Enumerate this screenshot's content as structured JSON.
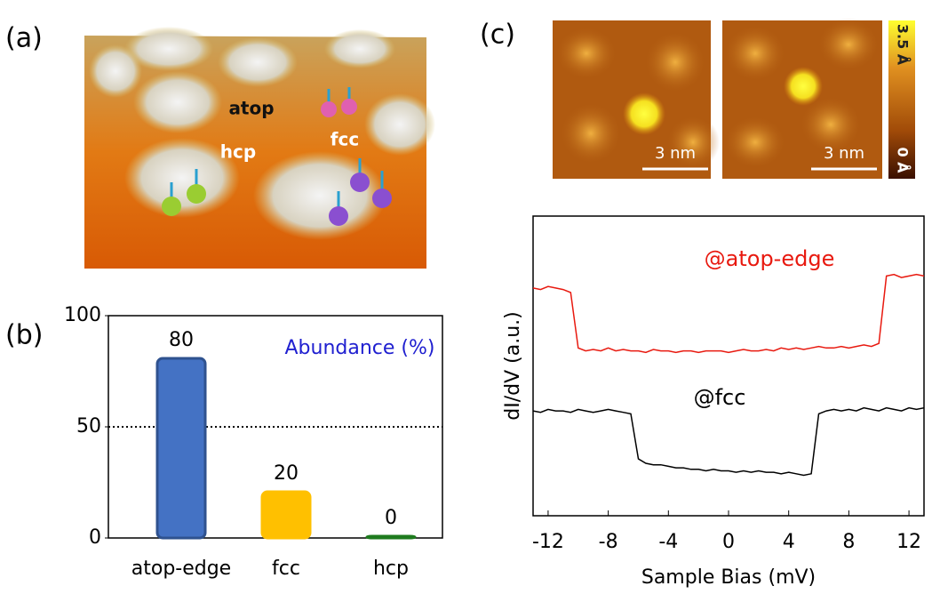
{
  "panels": {
    "a": {
      "label": "(a)",
      "sites": [
        "atop",
        "fcc",
        "hcp"
      ]
    },
    "b": {
      "label": "(b)"
    },
    "c": {
      "label": "(c)",
      "scale_bars": [
        "3 nm",
        "3 nm"
      ],
      "colorbar": [
        "3.5 Å",
        "0 Å"
      ]
    }
  },
  "chart_data": [
    {
      "type": "bar",
      "categories": [
        "atop-edge",
        "fcc",
        "hcp"
      ],
      "values": [
        80,
        20,
        0
      ],
      "colors": [
        "#4472c4",
        "#ffc000",
        "#1e7b1e"
      ],
      "ylim": [
        0,
        100
      ],
      "yticks": [
        0,
        50,
        100
      ],
      "hline": 50,
      "annotation": "Abundance (%)"
    },
    {
      "type": "line",
      "xlabel": "Sample Bias (mV)",
      "ylabel": "dI/dV (a.u.)",
      "xlim": [
        -13,
        13
      ],
      "xticks": [
        -12,
        -8,
        -4,
        0,
        4,
        8,
        12
      ],
      "ylim": [
        0,
        10
      ],
      "x": [
        -13,
        -12.5,
        -12,
        -11.5,
        -11,
        -10.5,
        -10,
        -9.5,
        -9,
        -8.5,
        -8,
        -7.5,
        -7,
        -6.5,
        -6,
        -5.5,
        -5,
        -4.5,
        -4,
        -3.5,
        -3,
        -2.5,
        -2,
        -1.5,
        -1,
        -0.5,
        0,
        0.5,
        1,
        1.5,
        2,
        2.5,
        3,
        3.5,
        4,
        4.5,
        5,
        5.5,
        6,
        6.5,
        7,
        7.5,
        8,
        8.5,
        9,
        9.5,
        10,
        10.5,
        11,
        11.5,
        12,
        12.5,
        13
      ],
      "series": [
        {
          "name": "@atop-edge",
          "color": "#e8190f",
          "values": [
            7.6,
            7.55,
            7.65,
            7.6,
            7.55,
            7.45,
            5.6,
            5.5,
            5.55,
            5.5,
            5.6,
            5.5,
            5.55,
            5.5,
            5.5,
            5.45,
            5.55,
            5.5,
            5.5,
            5.45,
            5.5,
            5.5,
            5.45,
            5.5,
            5.5,
            5.5,
            5.45,
            5.5,
            5.55,
            5.5,
            5.5,
            5.55,
            5.5,
            5.6,
            5.55,
            5.6,
            5.55,
            5.6,
            5.65,
            5.6,
            5.6,
            5.65,
            5.6,
            5.65,
            5.7,
            5.65,
            5.75,
            8.0,
            8.05,
            7.95,
            8.0,
            8.05,
            8.0
          ]
        },
        {
          "name": "@fcc",
          "color": "#000000",
          "values": [
            3.5,
            3.45,
            3.55,
            3.5,
            3.5,
            3.45,
            3.55,
            3.5,
            3.45,
            3.5,
            3.55,
            3.5,
            3.45,
            3.4,
            1.9,
            1.75,
            1.7,
            1.7,
            1.65,
            1.6,
            1.6,
            1.55,
            1.55,
            1.5,
            1.55,
            1.5,
            1.5,
            1.45,
            1.5,
            1.45,
            1.5,
            1.45,
            1.45,
            1.4,
            1.45,
            1.4,
            1.35,
            1.4,
            3.4,
            3.5,
            3.55,
            3.5,
            3.55,
            3.5,
            3.6,
            3.55,
            3.5,
            3.6,
            3.55,
            3.5,
            3.6,
            3.55,
            3.6
          ]
        }
      ]
    }
  ]
}
